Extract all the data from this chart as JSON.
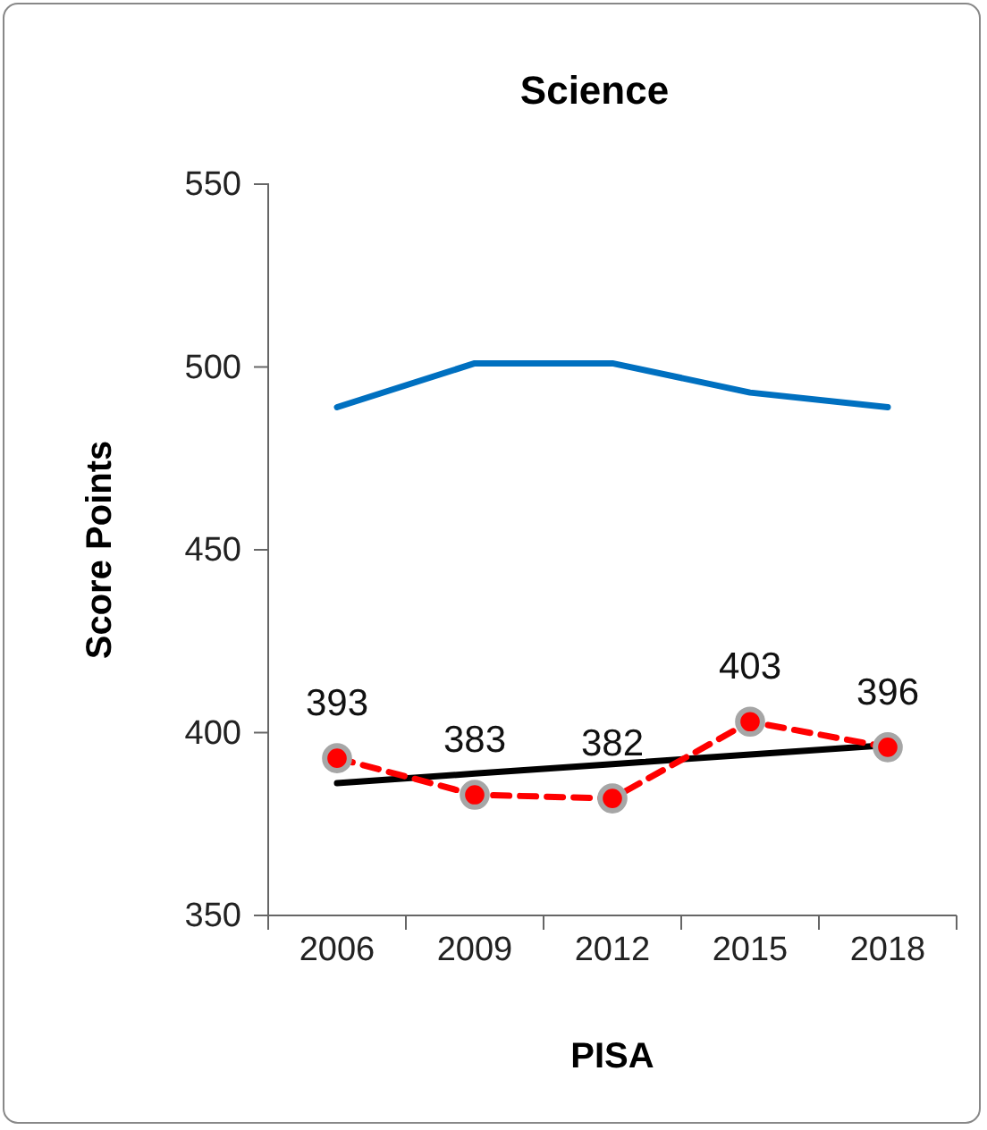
{
  "chart_data": {
    "type": "line",
    "title": "Science",
    "xlabel": "PISA",
    "ylabel": "Score Points",
    "categories": [
      "2006",
      "2009",
      "2012",
      "2015",
      "2018"
    ],
    "series": [
      {
        "color": "#0070c0",
        "values": [
          489,
          501,
          501,
          493,
          489
        ],
        "marker": "none",
        "line_style": "solid"
      },
      {
        "color": "#ff0000",
        "values": [
          393,
          383,
          382,
          403,
          396
        ],
        "marker": "circle",
        "line_style": "dashed",
        "value_labels": [
          "393",
          "383",
          "382",
          "403",
          "396"
        ]
      },
      {
        "type": "line",
        "color": "#000000",
        "values": [
          386.2,
          388.8,
          391.4,
          394.0,
          396.6
        ],
        "marker": "none",
        "line_style": "solid"
      }
    ],
    "ylim": [
      350,
      550
    ],
    "yticks": [
      350,
      400,
      450,
      500,
      550
    ],
    "grid": false
  }
}
